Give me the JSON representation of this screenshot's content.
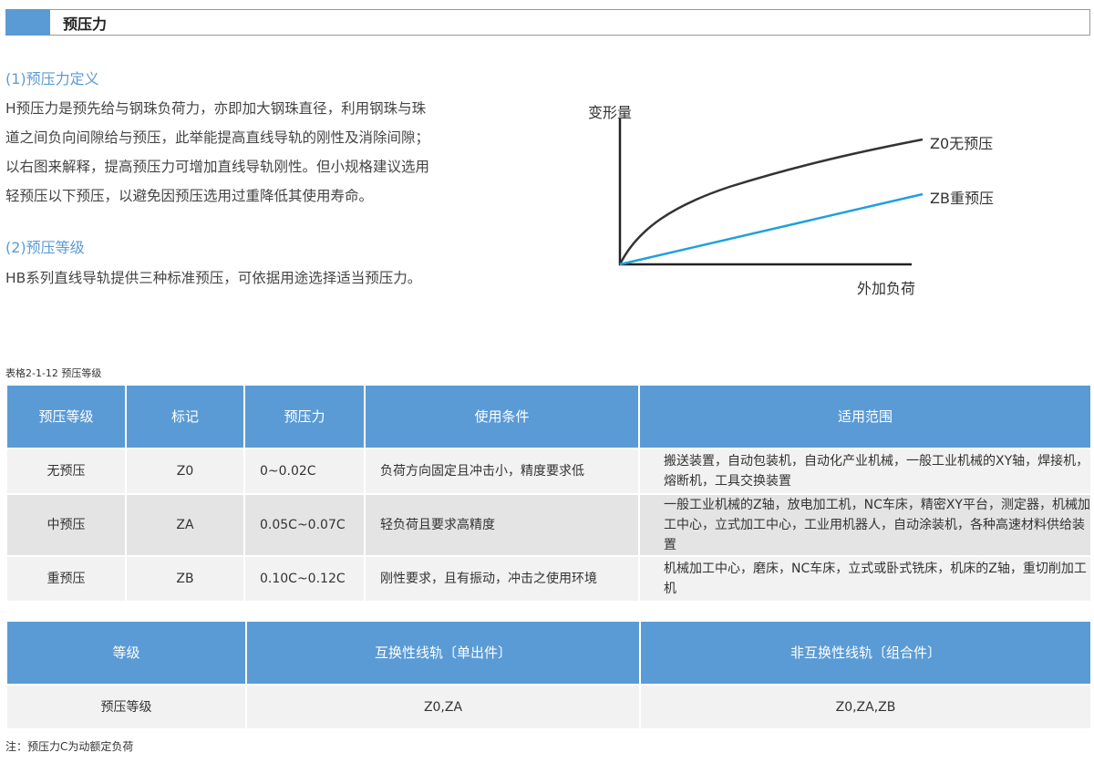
{
  "header": {
    "title": "预压力"
  },
  "section1": {
    "heading": "(1)预压力定义",
    "lines": [
      "H预压力是预先给与钢珠负荷力，亦即加大钢珠直径，利用钢珠与珠",
      "道之间负向间隙给与预压，此举能提高直线导轨的刚性及消除间隙；",
      "以右图来解释，提高预压力可增加直线导轨刚性。但小规格建议选用",
      "轻预压以下预压，以避免因预压选用过重降低其使用寿命。"
    ]
  },
  "section2": {
    "heading": "(2)预压等级",
    "text": "HB系列直线导轨提供三种标准预压，可依据用途选择适当预压力。"
  },
  "diagram": {
    "y_label": "变形量",
    "x_label": "外加负荷",
    "curves": [
      {
        "label": "Z0无预压",
        "color": "#333333"
      },
      {
        "label": "ZB重预压",
        "color": "#1fa0dc"
      }
    ]
  },
  "table1": {
    "caption": "表格2-1-12  预压等级",
    "headers": [
      "预压等级",
      "标记",
      "预压力",
      "使用条件",
      "适用范围"
    ],
    "rows": [
      [
        "无预压",
        "Z0",
        "0~0.02C",
        "负荷方向固定且冲击小，精度要求低",
        "搬送装置，自动包装机，自动化产业机械，一般工业机械的XY轴，焊接机，熔断机，工具交换装置"
      ],
      [
        "中预压",
        "ZA",
        "0.05C~0.07C",
        "轻负荷且要求高精度",
        "一般工业机械的Z轴，放电加工机，NC车床，精密XY平台，测定器，机械加工中心，立式加工中心，工业用机器人，自动涂装机，各种高速材料供给装置"
      ],
      [
        "重预压",
        "ZB",
        "0.10C~0.12C",
        "刚性要求，且有振动，冲击之使用环境",
        "机械加工中心，磨床，NC车床，立式或卧式铣床，机床的Z轴，重切削加工机"
      ]
    ]
  },
  "table2": {
    "headers": [
      "等级",
      "互换性线轨〔单出件〕",
      "非互换性线轨〔组合件〕"
    ],
    "row": [
      "预压等级",
      "Z0,ZA",
      "Z0,ZA,ZB"
    ]
  },
  "note": "注：预压力C为动额定负荷"
}
